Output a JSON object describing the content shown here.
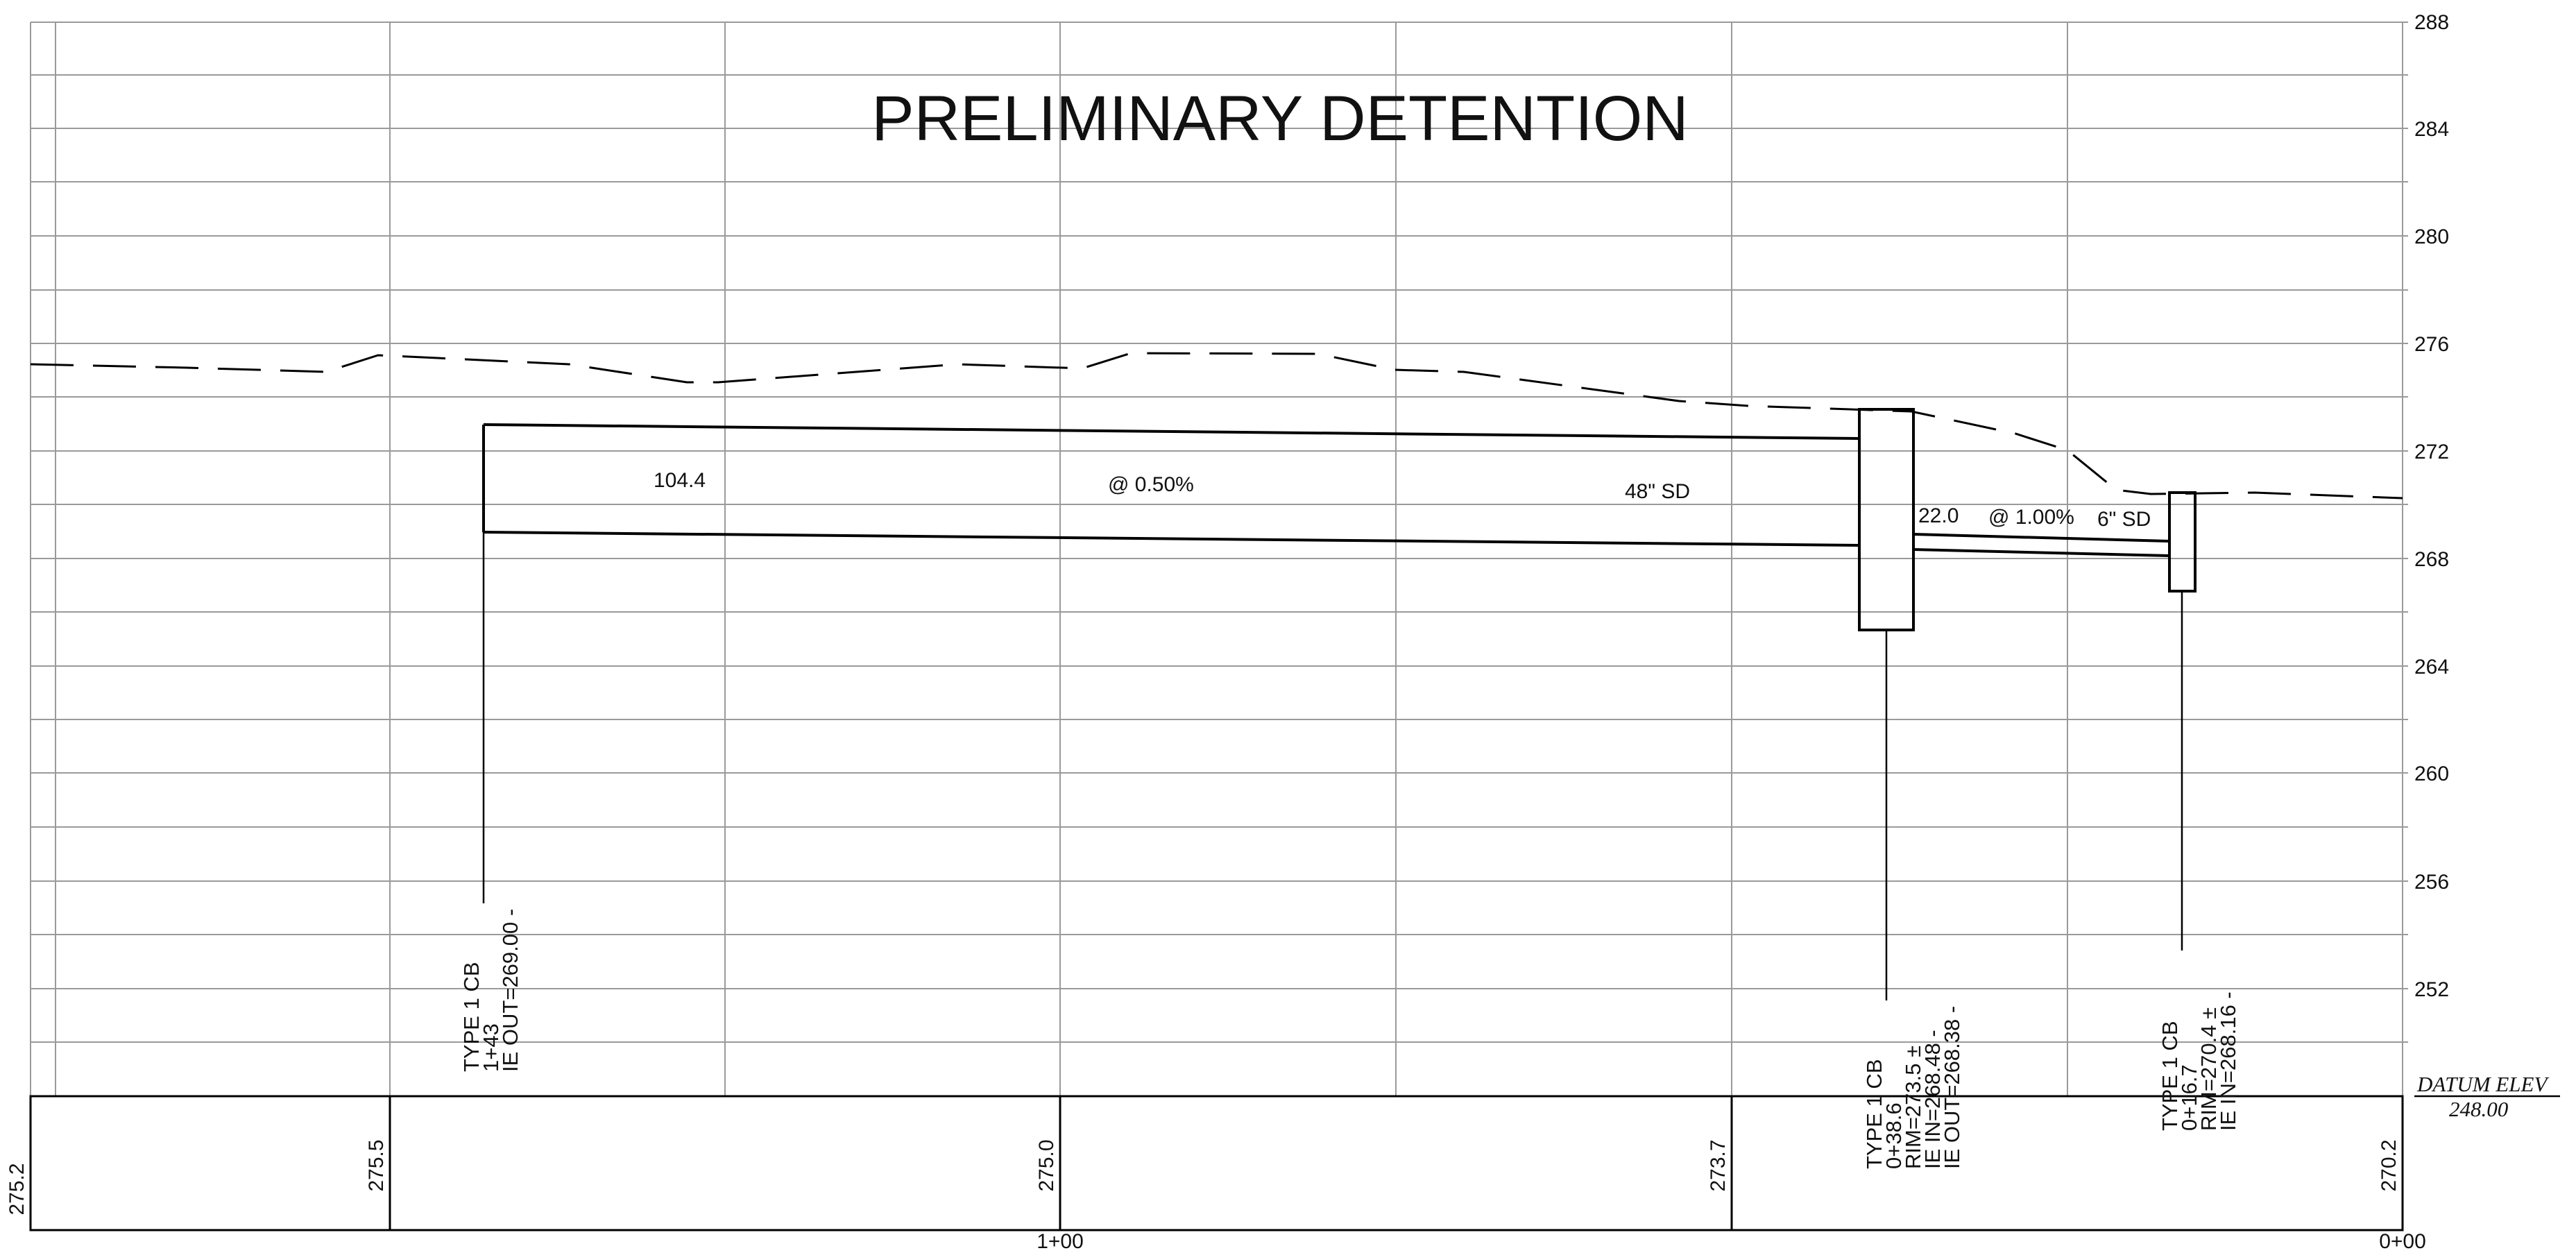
{
  "title": "PRELIMINARY DETENTION",
  "elevation_axis": {
    "labels": [
      "288",
      "284",
      "280",
      "276",
      "272",
      "268",
      "264",
      "260",
      "256",
      "252"
    ]
  },
  "datum": {
    "label": "DATUM  ELEV",
    "value": "248.00"
  },
  "stations": {
    "left": "1+00",
    "right": "0+00"
  },
  "ground_elevations": [
    "275.2",
    "275.5",
    "275.0",
    "273.7",
    "270.2"
  ],
  "pipes": {
    "main": {
      "length": "104.4",
      "slope": "@ 0.50%",
      "size": "48\" SD"
    },
    "branch": {
      "length": "22.0",
      "slope": "@ 1.00%",
      "size": "6\" SD"
    }
  },
  "structures": {
    "cb_1": {
      "type": "TYPE 1 CB",
      "station": "1+43",
      "ie_out": "IE OUT=269.00 -"
    },
    "cb_2": {
      "type": "TYPE 1 CB",
      "station": "0+38.6",
      "rim": "RIM=273.5 ±",
      "ie_in": "IE IN=268.48 -",
      "ie_out": "IE OUT=268.38 -"
    },
    "cb_3": {
      "type": "TYPE 1 CB",
      "station": "0+16.7",
      "rim": "RIM=270.4 ±",
      "ie_in": "IE IN=268.16 -"
    }
  }
}
